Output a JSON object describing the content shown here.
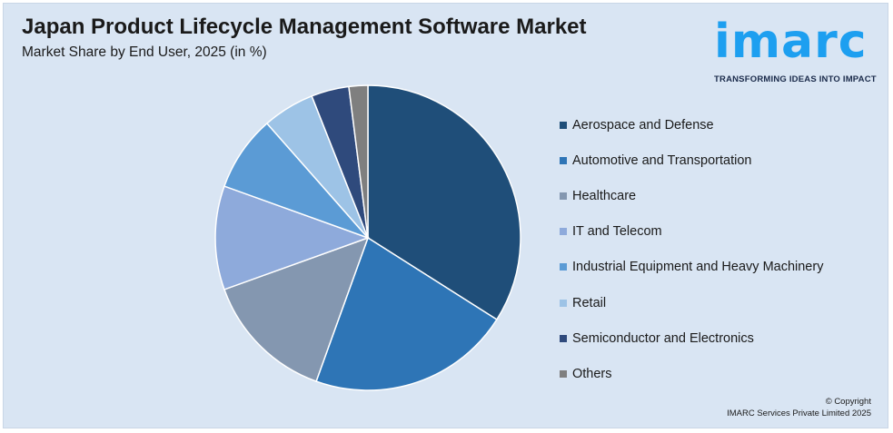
{
  "title": "Japan Product Lifecycle Management Software Market",
  "subtitle": "Market Share by End User, 2025 (in %)",
  "logo": {
    "word": "imarc",
    "tagline": "TRANSFORMING IDEAS INTO IMPACT",
    "color": "#1d9ff0"
  },
  "copyright": {
    "line1": "© Copyright",
    "line2": "IMARC Services Private Limited 2025"
  },
  "chart_data": {
    "type": "pie",
    "title": "Japan Product Lifecycle Management Software Market",
    "subtitle": "Market Share by End User, 2025 (in %)",
    "legend_position": "right",
    "start_angle_deg": 0,
    "direction": "clockwise",
    "slices": [
      {
        "label": "Aerospace and Defense",
        "value": 34.0,
        "color": "#1f4e79"
      },
      {
        "label": "Automotive and Transportation",
        "value": 21.5,
        "color": "#2e75b6"
      },
      {
        "label": "Healthcare",
        "value": 14.0,
        "color": "#8497b0"
      },
      {
        "label": "IT and Telecom",
        "value": 11.0,
        "color": "#8eaadb"
      },
      {
        "label": "Industrial Equipment and Heavy Machinery",
        "value": 8.0,
        "color": "#5b9bd5"
      },
      {
        "label": "Retail",
        "value": 5.5,
        "color": "#9dc3e6"
      },
      {
        "label": "Semiconductor and Electronics",
        "value": 4.0,
        "color": "#2f4a7c"
      },
      {
        "label": "Others",
        "value": 2.0,
        "color": "#7f7f7f"
      }
    ]
  }
}
